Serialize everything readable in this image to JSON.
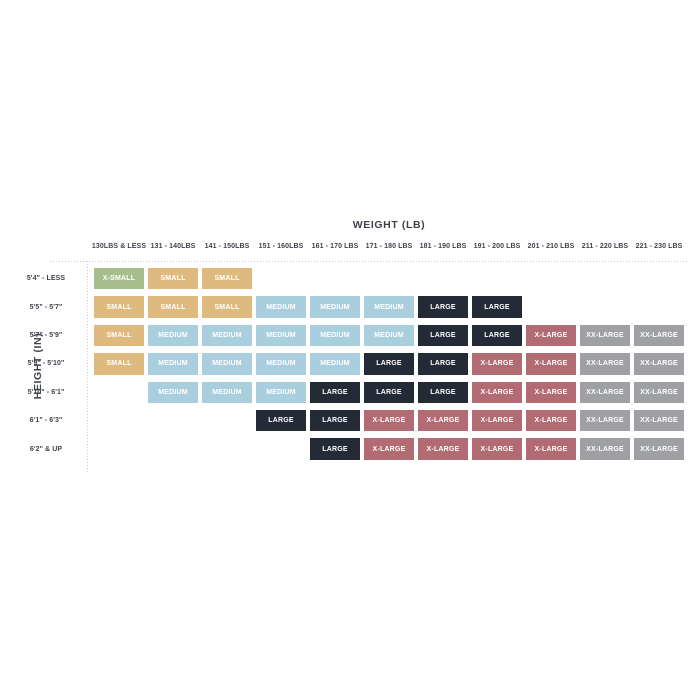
{
  "chart_data": {
    "type": "heatmap",
    "title": "WEIGHT (LB)",
    "xlabel": "WEIGHT (LB)",
    "ylabel": "HEIGHT (IN)",
    "legend_position": "none",
    "grid": "off",
    "columns": [
      "130LBS & LESS",
      "131 - 140LBS",
      "141 - 150LBS",
      "151 - 160LBS",
      "161 - 170 LBS",
      "171 - 180 LBS",
      "181 - 190 LBS",
      "191 - 200 LBS",
      "201 - 210 LBS",
      "211 - 220 LBS",
      "221 - 230 LBS"
    ],
    "rows": [
      "5'4\" - LESS",
      "5'5\" - 5'7\"",
      "5'7\" - 5'9\"",
      "5'9\" - 5'10\"",
      "5'10\" - 6'1\"",
      "6'1\" - 6'3\"",
      "6'2\" & UP"
    ],
    "cells": [
      [
        "X-SMALL",
        "SMALL",
        "SMALL",
        "",
        "",
        "",
        "",
        "",
        "",
        "",
        ""
      ],
      [
        "SMALL",
        "SMALL",
        "SMALL",
        "MEDIUM",
        "MEDIUM",
        "MEDIUM",
        "LARGE",
        "LARGE",
        "",
        "",
        ""
      ],
      [
        "SMALL",
        "MEDIUM",
        "MEDIUM",
        "MEDIUM",
        "MEDIUM",
        "MEDIUM",
        "LARGE",
        "LARGE",
        "X-LARGE",
        "XX-LARGE",
        "XX-LARGE"
      ],
      [
        "SMALL",
        "MEDIUM",
        "MEDIUM",
        "MEDIUM",
        "MEDIUM",
        "LARGE",
        "LARGE",
        "X-LARGE",
        "X-LARGE",
        "XX-LARGE",
        "XX-LARGE"
      ],
      [
        "",
        "MEDIUM",
        "MEDIUM",
        "MEDIUM",
        "LARGE",
        "LARGE",
        "LARGE",
        "X-LARGE",
        "X-LARGE",
        "XX-LARGE",
        "XX-LARGE"
      ],
      [
        "",
        "",
        "",
        "LARGE",
        "LARGE",
        "X-LARGE",
        "X-LARGE",
        "X-LARGE",
        "X-LARGE",
        "XX-LARGE",
        "XX-LARGE"
      ],
      [
        "",
        "",
        "",
        "",
        "LARGE",
        "X-LARGE",
        "X-LARGE",
        "X-LARGE",
        "X-LARGE",
        "XX-LARGE",
        "XX-LARGE"
      ]
    ],
    "size_colors": {
      "X-SMALL": "#a6be8d",
      "SMALL": "#dfba7e",
      "MEDIUM": "#a9cede",
      "LARGE": "#252a37",
      "X-LARGE": "#b26b73",
      "XX-LARGE": "#9ea0a3"
    },
    "text_color": "#3e434b",
    "cell_text_color": "#ffffff",
    "dotted_line_color": "#c7c8ca"
  }
}
